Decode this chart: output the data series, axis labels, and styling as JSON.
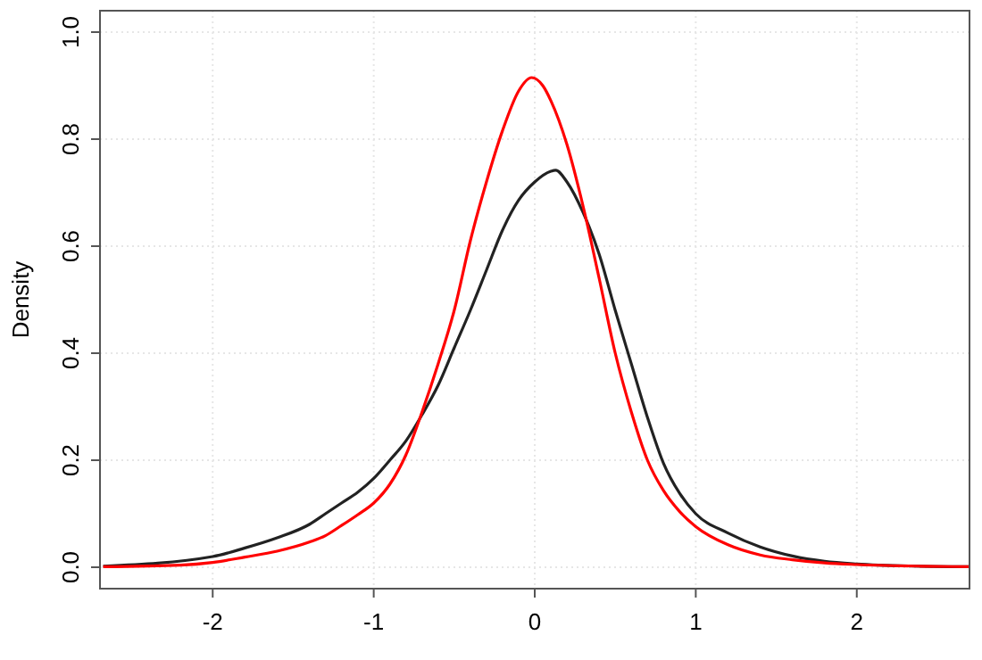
{
  "chart_data": {
    "type": "line",
    "ylabel": "Density",
    "xlim": [
      -2.7,
      2.7
    ],
    "ylim": [
      -0.04,
      1.04
    ],
    "xticks": [
      -2,
      -1,
      0,
      1,
      2
    ],
    "yticks": [
      {
        "value": 0,
        "label": "0.0"
      },
      {
        "value": 0.2,
        "label": "0.2"
      },
      {
        "value": 0.4,
        "label": "0.4"
      },
      {
        "value": 0.6,
        "label": "0.6"
      },
      {
        "value": 0.8,
        "label": "0.8"
      },
      {
        "value": 1,
        "label": "1.0"
      }
    ],
    "grid": true,
    "marker": "none",
    "line_style": "solid",
    "series": [
      {
        "color": "#222222",
        "x": [
          -2.68,
          -2.0,
          -1.8,
          -1.6,
          -1.4,
          -1.3,
          -1.2,
          -1.1,
          -1.0,
          -0.9,
          -0.8,
          -0.7,
          -0.6,
          -0.5,
          -0.4,
          -0.3,
          -0.2,
          -0.1,
          0.0,
          0.1,
          0.13,
          0.2,
          0.3,
          0.4,
          0.5,
          0.6,
          0.7,
          0.8,
          0.9,
          1.0,
          1.2,
          1.4,
          1.6,
          1.8,
          2.0,
          2.4,
          2.7
        ],
        "values": [
          0.002,
          0.02,
          0.036,
          0.055,
          0.08,
          0.1,
          0.12,
          0.14,
          0.166,
          0.2,
          0.236,
          0.285,
          0.34,
          0.41,
          0.48,
          0.555,
          0.63,
          0.686,
          0.72,
          0.74,
          0.742,
          0.72,
          0.663,
          0.585,
          0.48,
          0.38,
          0.28,
          0.194,
          0.138,
          0.1,
          0.064,
          0.038,
          0.021,
          0.011,
          0.006,
          0.002,
          0.001
        ]
      },
      {
        "color": "#ff0000",
        "x": [
          -2.68,
          -2.2,
          -2.0,
          -1.8,
          -1.6,
          -1.4,
          -1.3,
          -1.2,
          -1.1,
          -1.0,
          -0.9,
          -0.8,
          -0.7,
          -0.6,
          -0.5,
          -0.4,
          -0.3,
          -0.2,
          -0.1,
          -0.02,
          0.05,
          0.1,
          0.2,
          0.3,
          0.4,
          0.5,
          0.6,
          0.7,
          0.8,
          0.9,
          1.0,
          1.2,
          1.4,
          1.6,
          1.8,
          2.0,
          2.4,
          2.7
        ],
        "values": [
          0.001,
          0.004,
          0.009,
          0.019,
          0.03,
          0.047,
          0.059,
          0.078,
          0.098,
          0.12,
          0.155,
          0.21,
          0.29,
          0.38,
          0.48,
          0.61,
          0.72,
          0.816,
          0.89,
          0.915,
          0.9,
          0.872,
          0.79,
          0.675,
          0.54,
          0.4,
          0.29,
          0.2,
          0.143,
          0.104,
          0.076,
          0.042,
          0.023,
          0.014,
          0.008,
          0.005,
          0.002,
          0.001
        ]
      }
    ]
  }
}
